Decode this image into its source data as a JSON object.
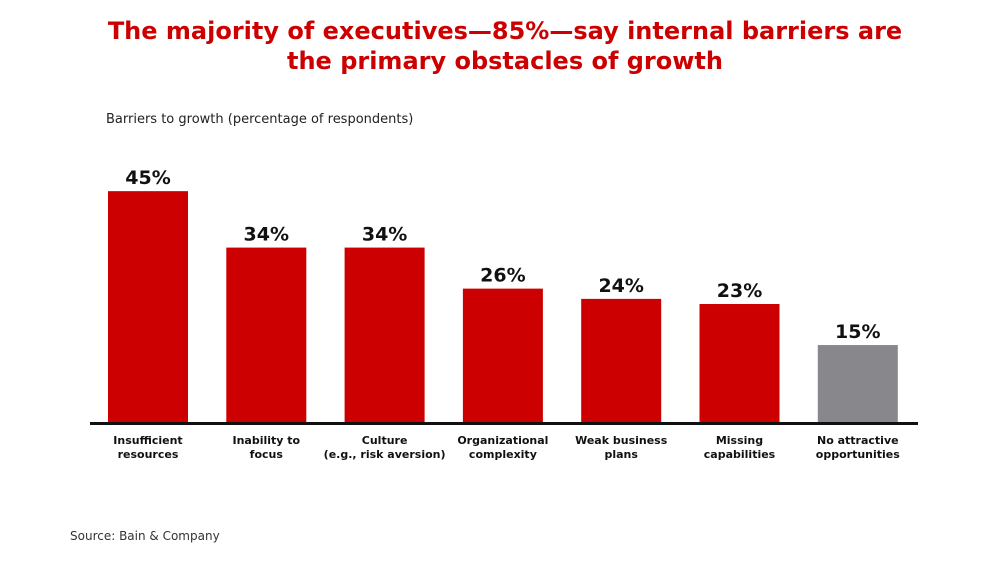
{
  "title": {
    "line1": "The majority of executives—85%—say internal barriers are",
    "line2": "the primary obstacles of growth"
  },
  "source": "Source: Bain & Company",
  "colors": {
    "title": "#cc0000",
    "bar_primary": "#cc0000",
    "bar_secondary": "#87878c",
    "axis": "#111111"
  },
  "chart_data": {
    "type": "bar",
    "title": "",
    "subtitle": "Barriers to growth (percentage of respondents)",
    "xlabel": "",
    "ylabel": "",
    "ylim": [
      0,
      50
    ],
    "grid": false,
    "unit": "%",
    "categories": [
      [
        "Insufficient",
        "resources"
      ],
      [
        "Inability to",
        "focus"
      ],
      [
        "Culture",
        "(e.g., risk aversion)"
      ],
      [
        "Organizational",
        "complexity"
      ],
      [
        "Weak business",
        "plans"
      ],
      [
        "Missing",
        "capabilities"
      ],
      [
        "No attractive",
        "opportunities"
      ]
    ],
    "values": [
      45,
      34,
      34,
      26,
      24,
      23,
      15
    ],
    "value_labels": [
      "45%",
      "34%",
      "34%",
      "26%",
      "24%",
      "23%",
      "15%"
    ],
    "bar_colors": [
      "#cc0000",
      "#cc0000",
      "#cc0000",
      "#cc0000",
      "#cc0000",
      "#cc0000",
      "#87878c"
    ]
  }
}
